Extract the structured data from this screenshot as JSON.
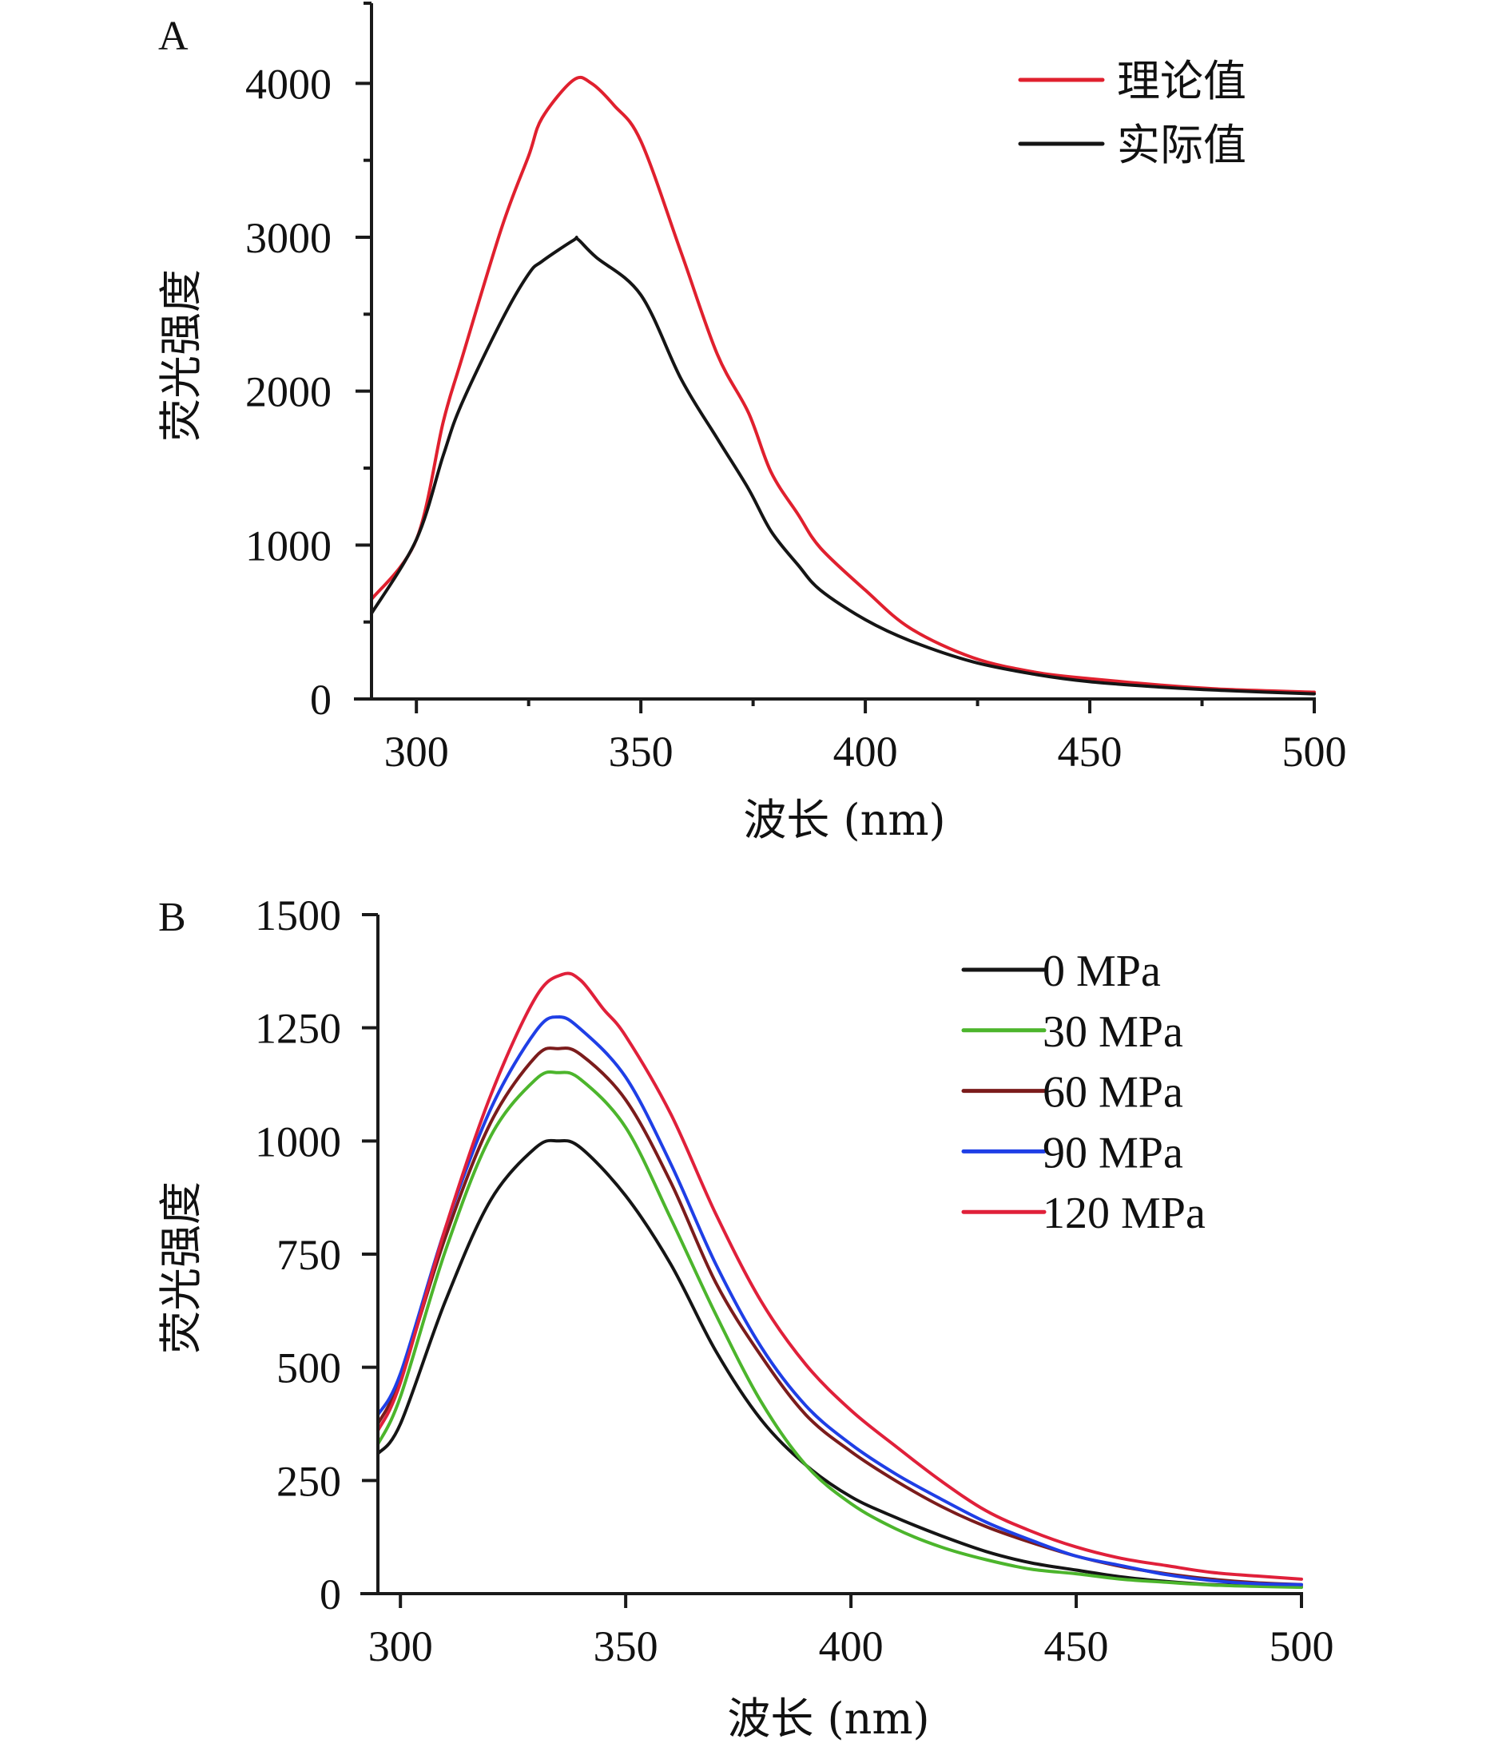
{
  "chart_data": [
    {
      "panel": "A",
      "type": "line",
      "title": "",
      "xlabel": "波长 (nm)",
      "ylabel": "荧光强度",
      "xlim": [
        290,
        500
      ],
      "ylim": [
        0,
        4500
      ],
      "xticks": [
        300,
        350,
        400,
        450,
        500
      ],
      "xtick_labels": [
        "300",
        "350",
        "400",
        "450",
        "500"
      ],
      "xminor_ticks": [
        325,
        375,
        425,
        475
      ],
      "yticks": [
        0,
        1000,
        2000,
        3000,
        4000
      ],
      "ytick_labels": [
        "0",
        "1000",
        "2000",
        "3000",
        "4000"
      ],
      "yminor_ticks": [
        500,
        1500,
        2500,
        3500
      ],
      "grid": false,
      "legend_position": "top-right",
      "series": [
        {
          "name": "理论值",
          "color": "#e0202e",
          "x": [
            290,
            300,
            306,
            310,
            319,
            325,
            328,
            335,
            339,
            344,
            350,
            359,
            367,
            374,
            379,
            385,
            390,
            400,
            410,
            424,
            438,
            450,
            466,
            480,
            500
          ],
          "y": [
            647,
            1036,
            1803,
            2200,
            3063,
            3529,
            3775,
            4022,
            4000,
            3858,
            3625,
            2899,
            2241,
            1858,
            1474,
            1200,
            981,
            707,
            460,
            268,
            173,
            132,
            90,
            63,
            44
          ]
        },
        {
          "name": "实际值",
          "color": "#151515",
          "x": [
            290,
            300,
            306,
            310,
            319,
            325,
            328,
            335,
            336,
            340,
            350,
            359,
            367,
            374,
            379,
            385,
            390,
            400,
            410,
            424,
            438,
            450,
            466,
            480,
            500
          ],
          "y": [
            556,
            1036,
            1584,
            1912,
            2460,
            2762,
            2844,
            2981,
            2986,
            2871,
            2625,
            2077,
            1693,
            1364,
            1090,
            871,
            707,
            515,
            378,
            241,
            159,
            112,
            77,
            55,
            33
          ]
        }
      ]
    },
    {
      "panel": "B",
      "type": "line",
      "title": "",
      "xlabel": "波长 (nm)",
      "ylabel": "荧光强度",
      "xlim": [
        295,
        500
      ],
      "ylim": [
        0,
        1500
      ],
      "xticks": [
        300,
        350,
        400,
        450,
        500
      ],
      "xtick_labels": [
        "300",
        "350",
        "400",
        "450",
        "500"
      ],
      "yticks": [
        0,
        250,
        500,
        750,
        1000,
        1250,
        1500
      ],
      "ytick_labels": [
        "0",
        "250",
        "500",
        "750",
        "1000",
        "1250",
        "1500"
      ],
      "grid": false,
      "legend_position": "top-right",
      "series": [
        {
          "name": "0 MPa",
          "color": "#151515",
          "x": [
            295,
            300,
            310,
            320,
            330,
            335,
            340,
            350,
            360,
            370,
            380,
            390,
            400,
            410,
            420,
            430,
            440,
            450,
            460,
            470,
            480,
            490,
            500
          ],
          "y": [
            309,
            375,
            647,
            869,
            985,
            1000,
            985,
            879,
            728,
            536,
            385,
            284,
            214,
            168,
            128,
            93,
            68,
            52,
            37,
            27,
            20,
            17,
            15
          ]
        },
        {
          "name": "30 MPa",
          "color": "#4cb52c",
          "x": [
            295,
            300,
            310,
            320,
            330,
            335,
            340,
            350,
            360,
            370,
            380,
            390,
            400,
            410,
            420,
            430,
            440,
            450,
            460,
            470,
            480,
            490,
            500
          ],
          "y": [
            330,
            435,
            758,
            1010,
            1136,
            1151,
            1136,
            1030,
            829,
            617,
            425,
            284,
            199,
            143,
            103,
            75,
            54,
            44,
            32,
            25,
            19,
            16,
            14
          ]
        },
        {
          "name": "60 MPa",
          "color": "#7b1c1c",
          "x": [
            295,
            300,
            310,
            320,
            330,
            335,
            340,
            350,
            360,
            370,
            380,
            390,
            400,
            410,
            420,
            430,
            440,
            450,
            460,
            470,
            480,
            490,
            500
          ],
          "y": [
            375,
            476,
            788,
            1040,
            1186,
            1204,
            1191,
            1091,
            909,
            687,
            526,
            395,
            314,
            249,
            193,
            148,
            113,
            83,
            60,
            44,
            32,
            24,
            20
          ]
        },
        {
          "name": "90 MPa",
          "color": "#1f3fe6",
          "x": [
            295,
            300,
            310,
            320,
            330,
            335,
            340,
            350,
            360,
            370,
            380,
            390,
            400,
            410,
            420,
            430,
            440,
            450,
            460,
            470,
            480,
            490,
            500
          ],
          "y": [
            395,
            486,
            808,
            1070,
            1242,
            1274,
            1247,
            1141,
            950,
            728,
            546,
            415,
            330,
            264,
            209,
            158,
            118,
            83,
            62,
            42,
            29,
            22,
            20
          ]
        },
        {
          "name": "120 MPa",
          "color": "#e0203a",
          "x": [
            295,
            300,
            310,
            320,
            330,
            336,
            340,
            345,
            350,
            360,
            370,
            380,
            390,
            400,
            410,
            420,
            430,
            440,
            450,
            460,
            470,
            480,
            490,
            500
          ],
          "y": [
            360,
            466,
            808,
            1100,
            1317,
            1368,
            1355,
            1292,
            1232,
            1060,
            839,
            647,
            506,
            405,
            325,
            249,
            183,
            138,
            103,
            78,
            62,
            47,
            39,
            32
          ]
        }
      ]
    }
  ]
}
